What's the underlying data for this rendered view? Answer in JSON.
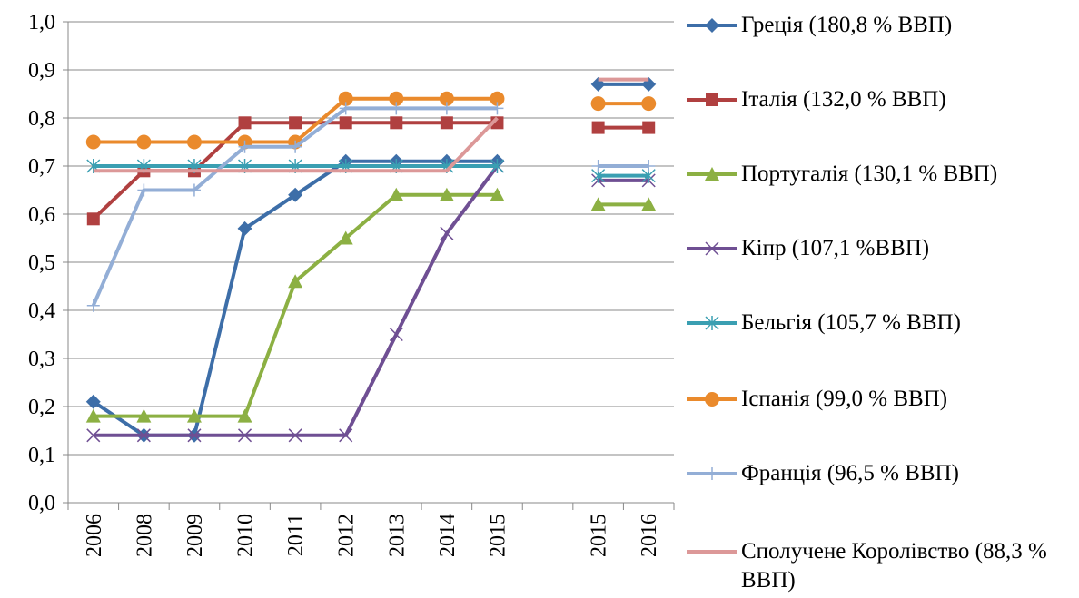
{
  "chart_data": {
    "type": "line",
    "categories": [
      "2006",
      "2008",
      "2009",
      "2010",
      "2011",
      "2012",
      "2013",
      "2014",
      "2015",
      null,
      "2015",
      "2016"
    ],
    "ylim": [
      0,
      1.0
    ],
    "yticks": [
      {
        "value": 0,
        "label": "0,0"
      },
      {
        "value": 0.1,
        "label": "0,1"
      },
      {
        "value": 0.2,
        "label": "0,2"
      },
      {
        "value": 0.3,
        "label": "0,3"
      },
      {
        "value": 0.4,
        "label": "0,4"
      },
      {
        "value": 0.5,
        "label": "0,5"
      },
      {
        "value": 0.6,
        "label": "0,6"
      },
      {
        "value": 0.7,
        "label": "0,7"
      },
      {
        "value": 0.8,
        "label": "0,8"
      },
      {
        "value": 0.9,
        "label": "0,9"
      },
      {
        "value": 1.0,
        "label": "1,0"
      }
    ],
    "grid": true,
    "legend": "right",
    "series": [
      {
        "name": "Греція (180,8 % ВВП)",
        "color": "#3d6ea8",
        "marker": "diamond",
        "values": [
          0.21,
          0.14,
          0.14,
          0.57,
          0.64,
          0.71,
          0.71,
          0.71,
          0.71,
          null,
          0.87,
          0.87
        ]
      },
      {
        "name": "Італія (132,0 % ВВП)",
        "color": "#b04040",
        "marker": "square",
        "values": [
          0.59,
          0.69,
          0.69,
          0.79,
          0.79,
          0.79,
          0.79,
          0.79,
          0.79,
          null,
          0.78,
          0.78
        ]
      },
      {
        "name": "Португалія (130,1 % ВВП)",
        "color": "#8cb043",
        "marker": "triangle",
        "values": [
          0.18,
          0.18,
          0.18,
          0.18,
          0.46,
          0.55,
          0.64,
          0.64,
          0.64,
          null,
          0.62,
          0.62
        ]
      },
      {
        "name": "Кіпр (107,1 %ВВП)",
        "color": "#6f4f93",
        "marker": "x",
        "values": [
          0.14,
          0.14,
          0.14,
          0.14,
          0.14,
          0.14,
          0.35,
          0.56,
          0.7,
          null,
          0.67,
          0.67
        ]
      },
      {
        "name": "Бельгія (105,7 % ВВП)",
        "color": "#3a9fb2",
        "marker": "star",
        "values": [
          0.7,
          0.7,
          0.7,
          0.7,
          0.7,
          0.7,
          0.7,
          0.7,
          0.7,
          null,
          0.68,
          0.68
        ]
      },
      {
        "name": "Іспанія (99,0 % ВВП)",
        "color": "#ea8a2c",
        "marker": "circle",
        "values": [
          0.75,
          0.75,
          0.75,
          0.75,
          0.75,
          0.84,
          0.84,
          0.84,
          0.84,
          null,
          0.83,
          0.83
        ]
      },
      {
        "name": "Франція (96,5 % ВВП)",
        "color": "#93aed6",
        "marker": "plus",
        "values": [
          0.41,
          0.65,
          0.65,
          0.74,
          0.74,
          0.82,
          0.82,
          0.82,
          0.82,
          null,
          0.7,
          0.7
        ]
      },
      {
        "name": "Сполучене Королівство (88,3 % ВВП)",
        "color": "#dc9898",
        "marker": "none",
        "values": [
          0.69,
          0.69,
          0.69,
          0.69,
          0.69,
          0.69,
          0.69,
          0.69,
          0.8,
          null,
          0.88,
          0.88
        ]
      }
    ]
  }
}
